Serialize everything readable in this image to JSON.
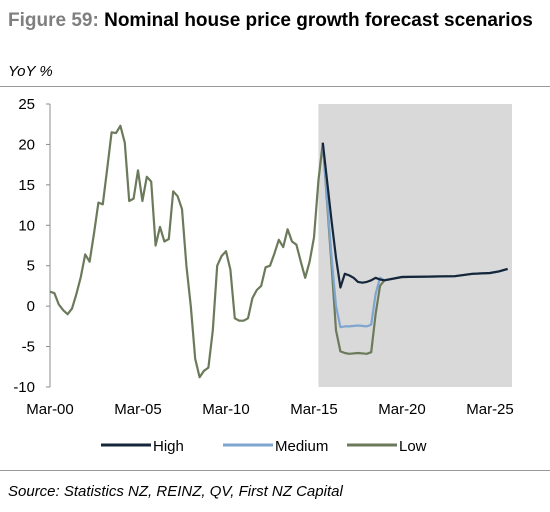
{
  "header": {
    "figure_label": "Figure 59:",
    "title": "Nominal house price growth forecast scenarios",
    "unit": "YoY %"
  },
  "footer": {
    "source": "Source: Statistics NZ, REINZ, QV, First NZ Capital"
  },
  "chart_data": {
    "type": "line",
    "title": "Nominal house price growth forecast scenarios",
    "ylabel": "YoY %",
    "xlabel": "",
    "ylim": [
      -10,
      25
    ],
    "xlim": [
      "2000-03",
      "2026-06"
    ],
    "yticks": [
      25,
      20,
      15,
      10,
      5,
      0,
      -5,
      -10
    ],
    "xticks": [
      "Mar-00",
      "Mar-05",
      "Mar-10",
      "Mar-15",
      "Mar-20",
      "Mar-25"
    ],
    "forecast_shading_start": "2015-06",
    "legend_position": "bottom",
    "grid": false,
    "colors": {
      "High": "#16263a",
      "Medium": "#7ea6cf",
      "Low": "#6b7a5a",
      "shading": "#d9d9d9"
    },
    "history": [
      [
        "2000-03",
        1.8
      ],
      [
        "2000-06",
        1.6
      ],
      [
        "2000-09",
        0.2
      ],
      [
        "2000-12",
        -0.5
      ],
      [
        "2001-03",
        -1.0
      ],
      [
        "2001-06",
        -0.3
      ],
      [
        "2001-09",
        1.5
      ],
      [
        "2001-12",
        3.6
      ],
      [
        "2002-03",
        6.4
      ],
      [
        "2002-06",
        5.5
      ],
      [
        "2002-09",
        9.0
      ],
      [
        "2002-12",
        12.8
      ],
      [
        "2003-03",
        12.6
      ],
      [
        "2003-06",
        17.0
      ],
      [
        "2003-09",
        21.5
      ],
      [
        "2003-12",
        21.4
      ],
      [
        "2004-03",
        22.3
      ],
      [
        "2004-06",
        20.2
      ],
      [
        "2004-09",
        13.0
      ],
      [
        "2004-12",
        13.3
      ],
      [
        "2005-03",
        16.8
      ],
      [
        "2005-06",
        13.0
      ],
      [
        "2005-09",
        16.0
      ],
      [
        "2005-12",
        15.4
      ],
      [
        "2006-03",
        7.5
      ],
      [
        "2006-06",
        9.8
      ],
      [
        "2006-09",
        8.0
      ],
      [
        "2006-12",
        8.3
      ],
      [
        "2007-03",
        14.2
      ],
      [
        "2007-06",
        13.6
      ],
      [
        "2007-09",
        12.0
      ],
      [
        "2007-12",
        5.0
      ],
      [
        "2008-03",
        0.0
      ],
      [
        "2008-06",
        -6.5
      ],
      [
        "2008-09",
        -8.8
      ],
      [
        "2008-12",
        -8.0
      ],
      [
        "2009-03",
        -7.6
      ],
      [
        "2009-06",
        -3.0
      ],
      [
        "2009-09",
        5.0
      ],
      [
        "2009-12",
        6.2
      ],
      [
        "2010-03",
        6.8
      ],
      [
        "2010-06",
        4.5
      ],
      [
        "2010-09",
        -1.5
      ],
      [
        "2010-12",
        -1.8
      ],
      [
        "2011-03",
        -1.8
      ],
      [
        "2011-06",
        -1.5
      ],
      [
        "2011-09",
        1.0
      ],
      [
        "2011-12",
        2.0
      ],
      [
        "2012-03",
        2.5
      ],
      [
        "2012-06",
        4.8
      ],
      [
        "2012-09",
        5.0
      ],
      [
        "2012-12",
        6.5
      ],
      [
        "2013-03",
        8.2
      ],
      [
        "2013-06",
        7.3
      ],
      [
        "2013-09",
        9.5
      ],
      [
        "2013-12",
        8.0
      ],
      [
        "2014-03",
        7.6
      ],
      [
        "2014-06",
        5.5
      ],
      [
        "2014-09",
        3.5
      ],
      [
        "2014-12",
        5.5
      ],
      [
        "2015-03",
        8.5
      ],
      [
        "2015-06",
        15.5
      ],
      [
        "2015-09",
        20.2
      ]
    ],
    "series": [
      {
        "name": "High",
        "points": [
          [
            "2015-09",
            20.2
          ],
          [
            "2016-03",
            10.5
          ],
          [
            "2016-06",
            6.0
          ],
          [
            "2016-09",
            2.3
          ],
          [
            "2016-12",
            4.0
          ],
          [
            "2017-03",
            3.8
          ],
          [
            "2017-06",
            3.5
          ],
          [
            "2017-09",
            3.0
          ],
          [
            "2017-12",
            2.9
          ],
          [
            "2018-03",
            3.0
          ],
          [
            "2018-06",
            3.2
          ],
          [
            "2018-09",
            3.5
          ],
          [
            "2018-12",
            3.3
          ],
          [
            "2019-03",
            3.2
          ],
          [
            "2020-03",
            3.6
          ],
          [
            "2023-03",
            3.7
          ],
          [
            "2024-03",
            4.0
          ],
          [
            "2025-03",
            4.1
          ],
          [
            "2025-09",
            4.3
          ],
          [
            "2026-03",
            4.6
          ]
        ]
      },
      {
        "name": "Medium",
        "points": [
          [
            "2015-09",
            20.2
          ],
          [
            "2016-03",
            6.0
          ],
          [
            "2016-06",
            0.0
          ],
          [
            "2016-09",
            -2.6
          ],
          [
            "2016-12",
            -2.5
          ],
          [
            "2017-03",
            -2.5
          ],
          [
            "2017-09",
            -2.4
          ],
          [
            "2018-03",
            -2.5
          ],
          [
            "2018-06",
            -2.3
          ],
          [
            "2018-09",
            1.5
          ],
          [
            "2018-12",
            3.5
          ],
          [
            "2019-03",
            3.2
          ],
          [
            "2020-03",
            3.6
          ],
          [
            "2023-03",
            3.7
          ],
          [
            "2024-03",
            4.0
          ],
          [
            "2025-03",
            4.1
          ],
          [
            "2025-09",
            4.3
          ],
          [
            "2026-03",
            4.6
          ]
        ]
      },
      {
        "name": "Low",
        "points": [
          [
            "2015-09",
            20.2
          ],
          [
            "2016-03",
            5.0
          ],
          [
            "2016-06",
            -3.0
          ],
          [
            "2016-09",
            -5.6
          ],
          [
            "2016-12",
            -5.8
          ],
          [
            "2017-03",
            -5.9
          ],
          [
            "2017-09",
            -5.8
          ],
          [
            "2018-03",
            -5.9
          ],
          [
            "2018-06",
            -5.7
          ],
          [
            "2018-09",
            -1.0
          ],
          [
            "2018-12",
            2.5
          ],
          [
            "2019-03",
            3.2
          ],
          [
            "2020-03",
            3.6
          ],
          [
            "2023-03",
            3.7
          ],
          [
            "2024-03",
            4.0
          ],
          [
            "2025-03",
            4.1
          ],
          [
            "2025-09",
            4.3
          ],
          [
            "2026-03",
            4.6
          ]
        ]
      }
    ]
  }
}
